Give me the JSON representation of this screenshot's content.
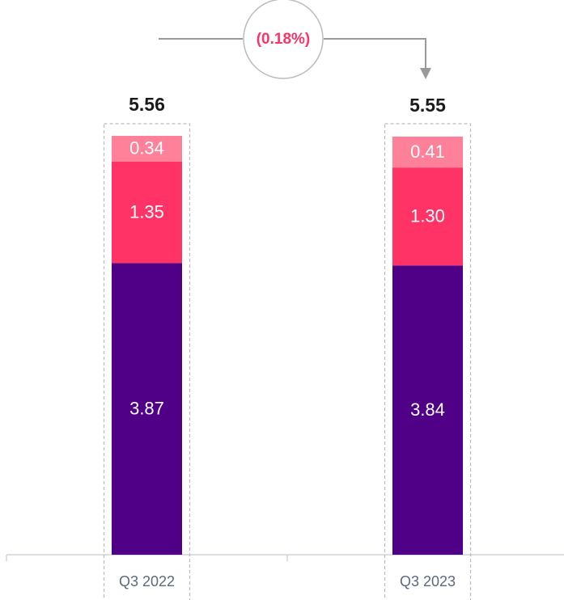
{
  "chart_data": {
    "type": "stacked_bar",
    "categories": [
      "Q3 2022",
      "Q3 2023"
    ],
    "series": [
      {
        "color": "#4f0087",
        "values": [
          3.87,
          3.84
        ],
        "value_labels": [
          "3.87",
          "3.84"
        ]
      },
      {
        "color": "#ff3366",
        "values": [
          1.35,
          1.3
        ],
        "value_labels": [
          "1.35",
          "1.30"
        ]
      },
      {
        "color": "#ff8099",
        "values": [
          0.34,
          0.41
        ],
        "value_labels": [
          "0.34",
          "0.41"
        ]
      }
    ],
    "totals": [
      5.56,
      5.55
    ],
    "annotation": "(0.18%)",
    "ylim": [
      0,
      6
    ]
  }
}
